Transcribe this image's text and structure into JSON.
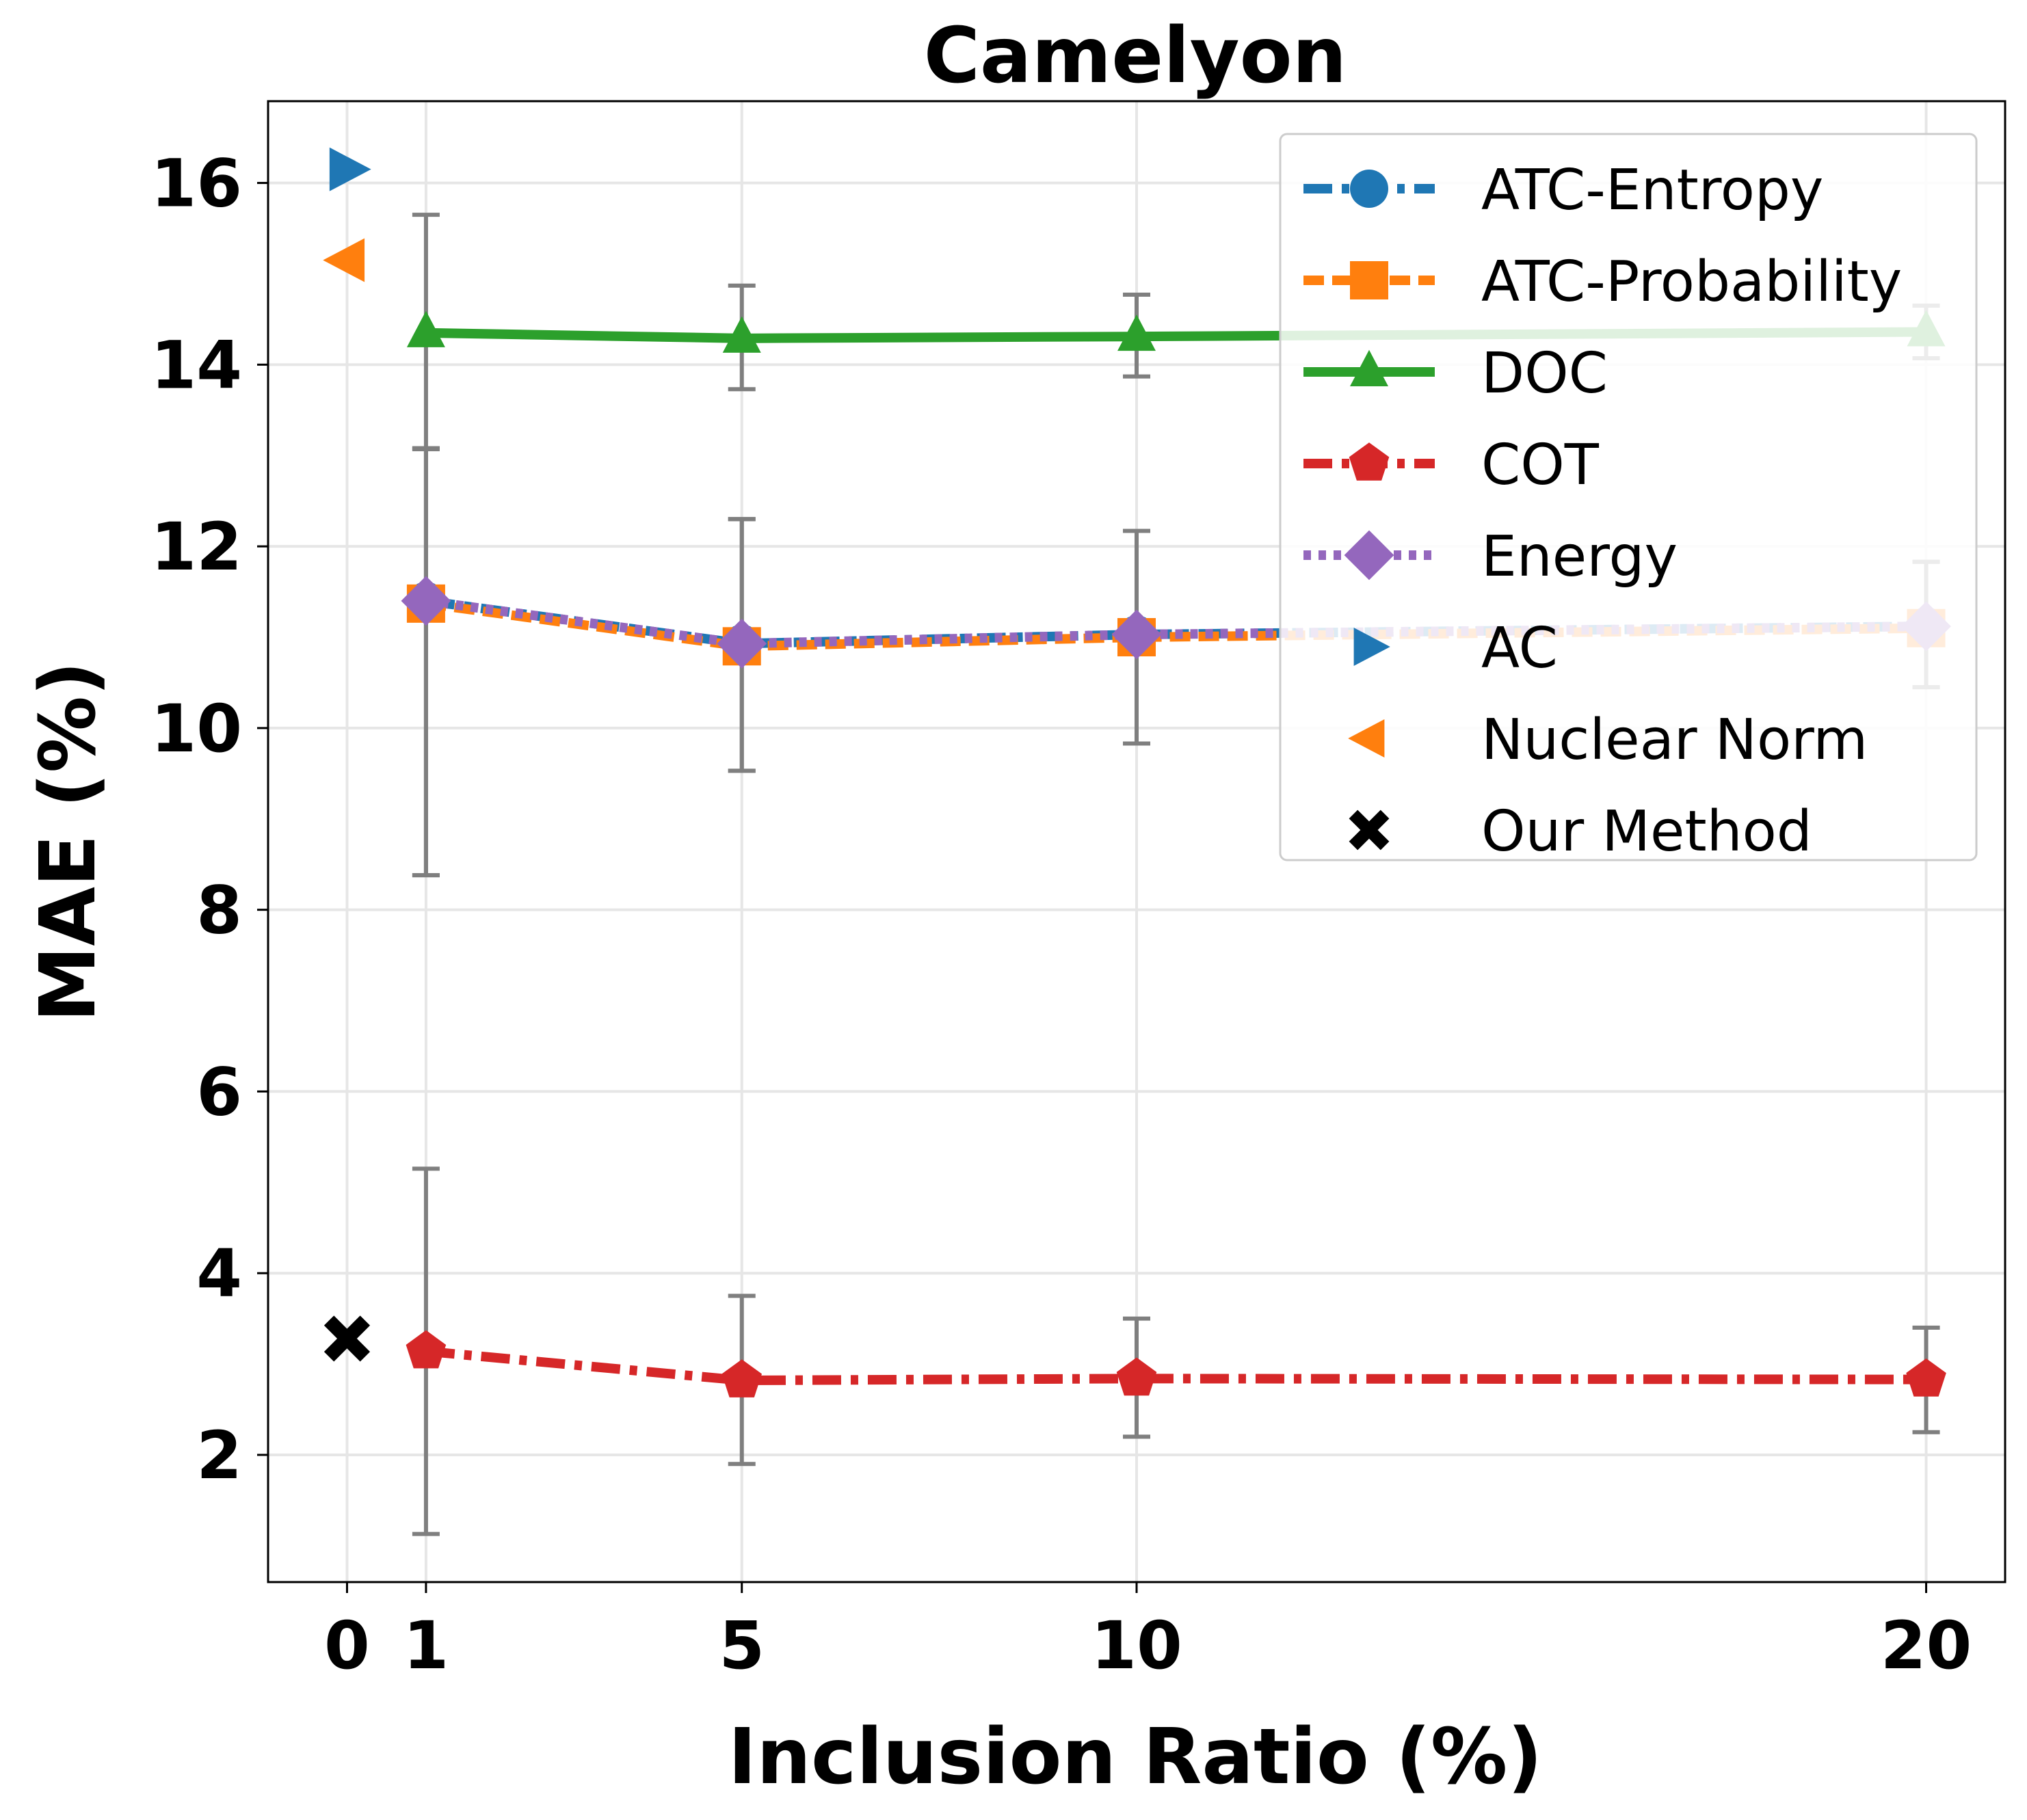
{
  "chart_data": {
    "type": "line",
    "title": "Camelyon",
    "xlabel": "Inclusion Ratio (%)",
    "ylabel": "MAE (%)",
    "xlim": [
      -1,
      21
    ],
    "ylim": [
      0.6,
      16.9
    ],
    "xticks": [
      0,
      1,
      5,
      10,
      20
    ],
    "xtick_labels": [
      "0",
      "1",
      "5",
      "10",
      "20"
    ],
    "yticks": [
      2,
      4,
      6,
      8,
      10,
      12,
      14,
      16
    ],
    "ytick_labels": [
      "2",
      "4",
      "6",
      "8",
      "10",
      "12",
      "14",
      "16"
    ],
    "grid": true,
    "legend_position": "top-right",
    "colors": {
      "blue": "#1f77b4",
      "orange": "#ff7f0e",
      "green": "#2ca02c",
      "red": "#d62728",
      "purple": "#9467bd",
      "gray": "#7f7f7f",
      "black": "#000000"
    },
    "x": [
      1,
      5,
      10,
      20
    ],
    "series": [
      {
        "name": "ATC-Entropy",
        "color": "#1f77b4",
        "dash": "dashdot",
        "marker": "circle",
        "values": [
          11.4,
          10.93,
          11.03,
          11.12
        ],
        "err_low": [
          8.38,
          9.53,
          9.83,
          10.45
        ],
        "err_high": [
          13.08,
          12.3,
          12.17,
          11.83
        ]
      },
      {
        "name": "ATC-Probability",
        "color": "#ff7f0e",
        "dash": "dashed",
        "marker": "square",
        "values": [
          11.37,
          10.9,
          11.0,
          11.1
        ],
        "err_low": [
          8.38,
          9.53,
          9.83,
          10.45
        ],
        "err_high": [
          13.08,
          12.3,
          12.17,
          11.83
        ]
      },
      {
        "name": "DOC",
        "color": "#2ca02c",
        "dash": "solid",
        "marker": "triangle-up",
        "values": [
          14.35,
          14.29,
          14.31,
          14.36
        ],
        "err_low": [
          13.07,
          13.73,
          13.87,
          14.07
        ],
        "err_high": [
          15.65,
          14.87,
          14.77,
          14.65
        ]
      },
      {
        "name": "COT",
        "color": "#d62728",
        "dash": "dashdot",
        "marker": "pentagon",
        "values": [
          3.14,
          2.82,
          2.84,
          2.83
        ],
        "err_low": [
          1.13,
          1.9,
          2.2,
          2.25
        ],
        "err_high": [
          5.15,
          3.75,
          3.5,
          3.4
        ]
      },
      {
        "name": "Energy",
        "color": "#9467bd",
        "dash": "dotted",
        "marker": "diamond",
        "values": [
          11.4,
          10.93,
          11.03,
          11.12
        ],
        "err_low": [
          8.38,
          9.53,
          9.83,
          10.45
        ],
        "err_high": [
          13.08,
          12.3,
          12.17,
          11.83
        ]
      }
    ],
    "points": [
      {
        "name": "AC",
        "x": 0,
        "y": 16.15,
        "color": "#1f77b4",
        "marker": "triangle-right"
      },
      {
        "name": "Nuclear Norm",
        "x": 0,
        "y": 15.15,
        "color": "#ff7f0e",
        "marker": "triangle-left"
      },
      {
        "name": "Our Method",
        "x": 0,
        "y": 3.28,
        "color": "#000000",
        "marker": "x"
      }
    ],
    "legend": [
      "ATC-Entropy",
      "ATC-Probability",
      "DOC",
      "COT",
      "Energy",
      "AC",
      "Nuclear Norm",
      "Our Method"
    ]
  }
}
